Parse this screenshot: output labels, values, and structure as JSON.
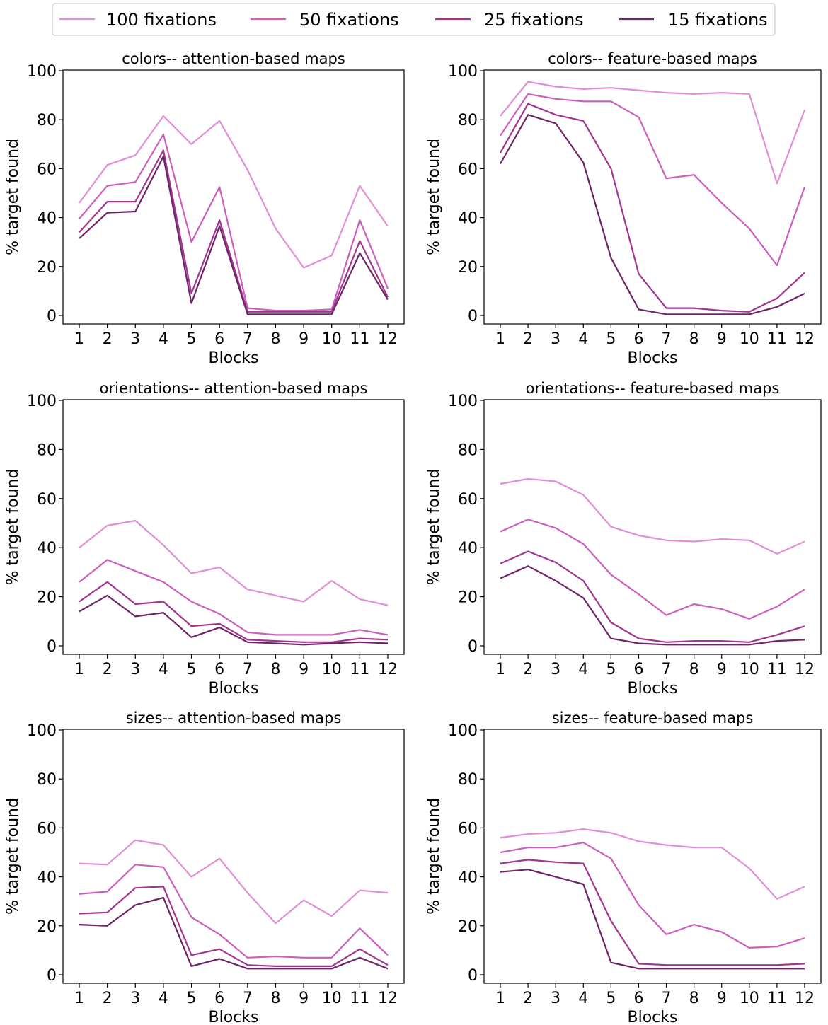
{
  "legend": {
    "placement": "top-center",
    "entries": [
      {
        "label": "100 fixations",
        "color": "#e08fd6"
      },
      {
        "label": "50 fixations",
        "color": "#cc5fbd"
      },
      {
        "label": "25 fixations",
        "color": "#a23590"
      },
      {
        "label": "15 fixations",
        "color": "#6e2467"
      }
    ]
  },
  "chart_data": [
    {
      "type": "line",
      "title": "colors-- attention-based maps",
      "xlabel": "Blocks",
      "ylabel": "% target found",
      "ylim": [
        0,
        100
      ],
      "yticks": [
        "0",
        "20",
        "40",
        "60",
        "80",
        "100"
      ],
      "categories": [
        "1",
        "2",
        "3",
        "4",
        "5",
        "6",
        "7",
        "8",
        "9",
        "10",
        "11",
        "12"
      ],
      "series": [
        {
          "name": "100 fixations",
          "values": [
            46,
            61.5,
            65.5,
            81.5,
            70,
            79.5,
            59.5,
            35.5,
            19.5,
            24.5,
            53,
            36.5
          ]
        },
        {
          "name": "50 fixations",
          "values": [
            39.5,
            53,
            54.5,
            74,
            30,
            52.5,
            3,
            2,
            2,
            2.5,
            39,
            11
          ]
        },
        {
          "name": "25 fixations",
          "values": [
            34,
            46.5,
            46.5,
            67.5,
            9,
            39,
            1.5,
            1.5,
            1.5,
            1.5,
            30.5,
            7.5
          ]
        },
        {
          "name": "15 fixations",
          "values": [
            31.5,
            42,
            42.5,
            65,
            5,
            36.5,
            0.5,
            0.5,
            0.5,
            0.5,
            25.5,
            6.5
          ]
        }
      ]
    },
    {
      "type": "line",
      "title": "colors-- feature-based maps",
      "xlabel": "Blocks",
      "ylabel": "% target found",
      "ylim": [
        0,
        100
      ],
      "yticks": [
        "0",
        "20",
        "40",
        "60",
        "80",
        "100"
      ],
      "categories": [
        "1",
        "2",
        "3",
        "4",
        "5",
        "6",
        "7",
        "8",
        "9",
        "10",
        "11",
        "12"
      ],
      "series": [
        {
          "name": "100 fixations",
          "values": [
            81.5,
            95.5,
            93.5,
            92.5,
            93,
            92,
            91,
            90.5,
            91,
            90.5,
            54,
            84
          ]
        },
        {
          "name": "50 fixations",
          "values": [
            73.5,
            90.5,
            88.5,
            87.5,
            87.5,
            81,
            56,
            57.5,
            46,
            35.5,
            20.5,
            52.5
          ]
        },
        {
          "name": "25 fixations",
          "values": [
            66.5,
            86.5,
            82,
            79.5,
            60,
            17,
            3,
            3,
            2,
            1.5,
            7,
            17.5
          ]
        },
        {
          "name": "15 fixations",
          "values": [
            62,
            82,
            78.5,
            62.5,
            23.5,
            2.5,
            0.5,
            0.5,
            0.5,
            0.5,
            3.5,
            9
          ]
        }
      ]
    },
    {
      "type": "line",
      "title": "orientations-- attention-based maps",
      "xlabel": "Blocks",
      "ylabel": "% target found",
      "ylim": [
        0,
        100
      ],
      "yticks": [
        "0",
        "20",
        "40",
        "60",
        "80",
        "100"
      ],
      "categories": [
        "1",
        "2",
        "3",
        "4",
        "5",
        "6",
        "7",
        "8",
        "9",
        "10",
        "11",
        "12"
      ],
      "series": [
        {
          "name": "100 fixations",
          "values": [
            40,
            49,
            51,
            41,
            29.5,
            32,
            23,
            20.5,
            18,
            26.5,
            19,
            16.5
          ]
        },
        {
          "name": "50 fixations",
          "values": [
            26,
            35,
            30.5,
            26,
            18,
            13,
            5.5,
            4.5,
            4.5,
            4.5,
            6.5,
            4.5
          ]
        },
        {
          "name": "25 fixations",
          "values": [
            18,
            26,
            17,
            18,
            8,
            9,
            2.5,
            2,
            1.5,
            1.5,
            3,
            2.5
          ]
        },
        {
          "name": "15 fixations",
          "values": [
            14,
            20.5,
            12,
            13.5,
            3.5,
            7.5,
            1.5,
            1,
            0.5,
            1,
            1.5,
            1
          ]
        }
      ]
    },
    {
      "type": "line",
      "title": "orientations-- feature-based maps",
      "xlabel": "Blocks",
      "ylabel": "% target found",
      "ylim": [
        0,
        100
      ],
      "yticks": [
        "0",
        "20",
        "40",
        "60",
        "80",
        "100"
      ],
      "categories": [
        "1",
        "2",
        "3",
        "4",
        "5",
        "6",
        "7",
        "8",
        "9",
        "10",
        "11",
        "12"
      ],
      "series": [
        {
          "name": "100 fixations",
          "values": [
            66,
            68,
            67,
            61.5,
            48.5,
            45,
            43,
            42.5,
            43.5,
            43,
            37.5,
            42.5
          ]
        },
        {
          "name": "50 fixations",
          "values": [
            46.5,
            51.5,
            48,
            41.5,
            29,
            21,
            12.5,
            17,
            15,
            11,
            16,
            23
          ]
        },
        {
          "name": "25 fixations",
          "values": [
            33.5,
            38.5,
            34,
            26.5,
            9.5,
            3,
            1.5,
            2,
            2,
            1.5,
            4.5,
            8
          ]
        },
        {
          "name": "15 fixations",
          "values": [
            27.5,
            32.5,
            26.5,
            19.5,
            3,
            1,
            0.5,
            0.5,
            0.5,
            0.5,
            2,
            2.5
          ]
        }
      ]
    },
    {
      "type": "line",
      "title": "sizes-- attention-based maps",
      "xlabel": "Blocks",
      "ylabel": "% target found",
      "ylim": [
        0,
        100
      ],
      "yticks": [
        "0",
        "20",
        "40",
        "60",
        "80",
        "100"
      ],
      "categories": [
        "1",
        "2",
        "3",
        "4",
        "5",
        "6",
        "7",
        "8",
        "9",
        "10",
        "11",
        "12"
      ],
      "series": [
        {
          "name": "100 fixations",
          "values": [
            45.5,
            45,
            55,
            53,
            40,
            47.5,
            33.5,
            21,
            30.5,
            24,
            34.5,
            33.5
          ]
        },
        {
          "name": "50 fixations",
          "values": [
            33,
            34,
            45,
            44,
            23.5,
            16.5,
            7,
            7.5,
            7,
            7,
            19,
            8
          ]
        },
        {
          "name": "25 fixations",
          "values": [
            25,
            25.5,
            35.5,
            36,
            8,
            10.5,
            4,
            3.5,
            3.5,
            3.5,
            10.5,
            4
          ]
        },
        {
          "name": "15 fixations",
          "values": [
            20.5,
            20,
            28.5,
            31.5,
            3.5,
            6.5,
            2.5,
            2.5,
            2.5,
            2.5,
            7,
            2.5
          ]
        }
      ]
    },
    {
      "type": "line",
      "title": "sizes-- feature-based maps",
      "xlabel": "Blocks",
      "ylabel": "% target found",
      "ylim": [
        0,
        100
      ],
      "yticks": [
        "0",
        "20",
        "40",
        "60",
        "80",
        "100"
      ],
      "categories": [
        "1",
        "2",
        "3",
        "4",
        "5",
        "6",
        "7",
        "8",
        "9",
        "10",
        "11",
        "12"
      ],
      "series": [
        {
          "name": "100 fixations",
          "values": [
            56,
            57.5,
            58,
            59.5,
            58,
            54.5,
            53,
            52,
            52,
            43.5,
            31,
            36
          ]
        },
        {
          "name": "50 fixations",
          "values": [
            50,
            52,
            52,
            54,
            47.5,
            28.5,
            16.5,
            20.5,
            17.5,
            11,
            11.5,
            15
          ]
        },
        {
          "name": "25 fixations",
          "values": [
            45.5,
            47,
            46,
            45.5,
            22,
            4.5,
            4,
            4,
            4,
            4,
            4,
            4.5
          ]
        },
        {
          "name": "15 fixations",
          "values": [
            42,
            43,
            40,
            37,
            5,
            2.5,
            2.5,
            2.5,
            2.5,
            2.5,
            2.5,
            2.5
          ]
        }
      ]
    }
  ]
}
